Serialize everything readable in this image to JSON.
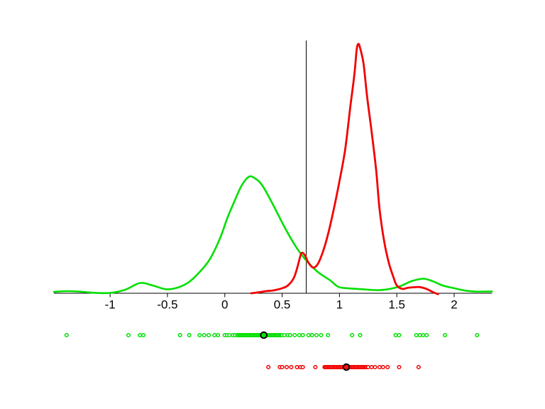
{
  "figure": {
    "background": "#ffffff",
    "axis_color": "#000000"
  },
  "chart_data": {
    "type": "line",
    "subtype": "kernel-density-estimate-with-rug",
    "title": "",
    "xlabel": "",
    "ylabel": "",
    "xlim": [
      -1.49,
      2.33
    ],
    "ylim": [
      0,
      2.2
    ],
    "grid": false,
    "legend_position": "none",
    "x_ticks": [
      -1,
      -0.5,
      0,
      0.5,
      1,
      1.5,
      2
    ],
    "x_tick_labels": [
      "-1",
      "-0.5",
      "0",
      "0.5",
      "1",
      "1.5",
      "2"
    ],
    "vline": {
      "x": 0.71,
      "color": "#000000"
    },
    "series": [
      {
        "name": "green-density",
        "color": "#00E000",
        "line_width": 2.6,
        "x": [
          -1.49,
          -1.37,
          -1.24,
          -1.12,
          -1.0,
          -0.87,
          -0.74,
          -0.63,
          -0.51,
          -0.41,
          -0.32,
          -0.23,
          -0.13,
          -0.04,
          0.02,
          0.08,
          0.145,
          0.21,
          0.27,
          0.33,
          0.42,
          0.515,
          0.61,
          0.7,
          0.79,
          0.855,
          0.92,
          0.99,
          1.07,
          1.16,
          1.26,
          1.35,
          1.44,
          1.53,
          1.63,
          1.73,
          1.81,
          1.9,
          2.0,
          2.09,
          2.18,
          2.33
        ],
        "y": [
          0.012,
          0.018,
          0.012,
          0.003,
          0.003,
          0.03,
          0.088,
          0.067,
          0.034,
          0.049,
          0.091,
          0.171,
          0.293,
          0.476,
          0.64,
          0.78,
          0.921,
          1.0,
          0.982,
          0.921,
          0.762,
          0.579,
          0.415,
          0.293,
          0.201,
          0.152,
          0.11,
          0.055,
          0.043,
          0.037,
          0.03,
          0.027,
          0.037,
          0.061,
          0.104,
          0.125,
          0.104,
          0.067,
          0.043,
          0.024,
          0.015,
          0.015
        ]
      },
      {
        "name": "red-density",
        "color": "#F20000",
        "line_width": 2.8,
        "x": [
          0.23,
          0.3,
          0.36,
          0.42,
          0.5,
          0.55,
          0.6,
          0.63,
          0.66,
          0.675,
          0.7,
          0.73,
          0.77,
          0.81,
          0.855,
          0.9,
          0.95,
          1.0,
          1.05,
          1.095,
          1.13,
          1.15,
          1.165,
          1.18,
          1.21,
          1.24,
          1.28,
          1.32,
          1.35,
          1.39,
          1.43,
          1.47,
          1.5,
          1.55,
          1.59,
          1.65,
          1.7,
          1.76,
          1.81,
          1.86
        ],
        "y": [
          0.0,
          0.009,
          0.018,
          0.024,
          0.043,
          0.067,
          0.128,
          0.213,
          0.323,
          0.348,
          0.323,
          0.262,
          0.22,
          0.25,
          0.354,
          0.506,
          0.72,
          0.963,
          1.238,
          1.604,
          1.878,
          2.091,
          2.14,
          2.104,
          1.97,
          1.695,
          1.39,
          1.055,
          0.72,
          0.445,
          0.262,
          0.14,
          0.067,
          0.037,
          0.046,
          0.052,
          0.053,
          0.037,
          0.012,
          -0.008
        ]
      }
    ],
    "rug": [
      {
        "name": "green-rug",
        "color": "#00E000",
        "row": 1,
        "values": [
          -1.38,
          -0.84,
          -0.74,
          -0.71,
          -0.39,
          -0.31,
          -0.22,
          -0.18,
          -0.14,
          -0.09,
          -0.06,
          0.0,
          0.02,
          0.04,
          0.07,
          0.09,
          0.11,
          0.12,
          0.13,
          0.14,
          0.15,
          0.16,
          0.17,
          0.18,
          0.19,
          0.2,
          0.21,
          0.22,
          0.23,
          0.24,
          0.25,
          0.26,
          0.27,
          0.28,
          0.29,
          0.3,
          0.31,
          0.32,
          0.33,
          0.34,
          0.35,
          0.36,
          0.37,
          0.38,
          0.39,
          0.4,
          0.41,
          0.42,
          0.43,
          0.44,
          0.45,
          0.46,
          0.47,
          0.48,
          0.49,
          0.5,
          0.52,
          0.55,
          0.57,
          0.61,
          0.65,
          0.68,
          0.73,
          0.76,
          0.8,
          0.84,
          0.9,
          1.11,
          1.18,
          1.49,
          1.52,
          1.67,
          1.7,
          1.73,
          1.76,
          1.92,
          2.2
        ],
        "marker": {
          "x": 0.34
        }
      },
      {
        "name": "red-rug",
        "color": "#F20000",
        "row": 2,
        "values": [
          0.38,
          0.48,
          0.5,
          0.54,
          0.58,
          0.63,
          0.66,
          0.68,
          0.79,
          0.87,
          0.88,
          0.89,
          0.9,
          0.91,
          0.92,
          0.93,
          0.94,
          0.95,
          0.96,
          0.97,
          0.98,
          0.99,
          1.0,
          1.01,
          1.02,
          1.03,
          1.04,
          1.05,
          1.06,
          1.07,
          1.08,
          1.09,
          1.1,
          1.11,
          1.12,
          1.13,
          1.14,
          1.15,
          1.16,
          1.17,
          1.18,
          1.19,
          1.2,
          1.21,
          1.22,
          1.23,
          1.24,
          1.25,
          1.28,
          1.31,
          1.35,
          1.38,
          1.42,
          1.52,
          1.69
        ],
        "marker": {
          "x": 1.06
        }
      }
    ]
  }
}
